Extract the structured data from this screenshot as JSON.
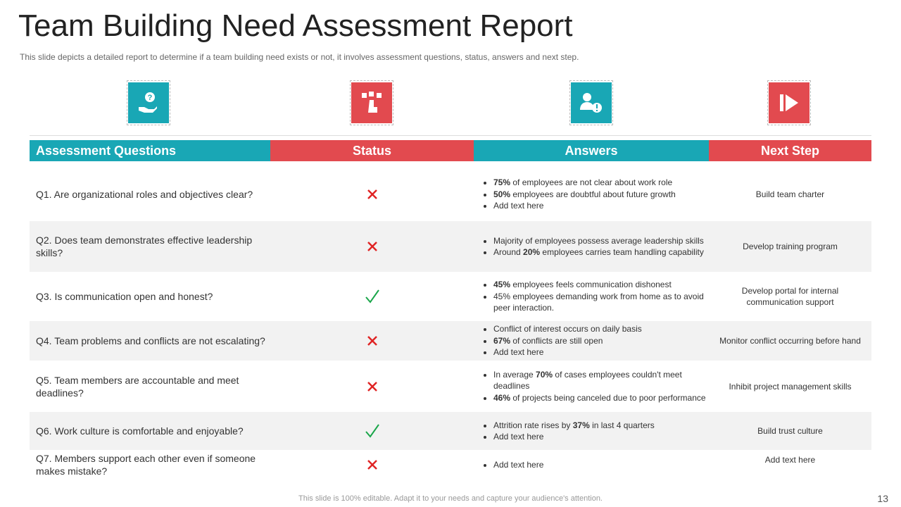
{
  "header": {
    "title": "Team Building Need Assessment Report",
    "subtitle": "This slide depicts a detailed report to determine  if a team building need exists or not, it involves  assessment questions, status, answers and next step."
  },
  "table": {
    "columns": [
      "Assessment Questions",
      "Status",
      "Answers",
      "Next Step"
    ],
    "rows": [
      {
        "question": "Q1. Are organizational roles and objectives clear?",
        "answers": [
          [
            {
              "bold": "75%"
            },
            " of employees are not clear about work role"
          ],
          [
            {
              "bold": "50%"
            },
            " employees are doubtful about future growth"
          ],
          [
            "Add text here"
          ]
        ],
        "next_step": "Build team charter"
      },
      {
        "question": "Q2. Does team demonstrates effective leadership skills?",
        "answers": [
          [
            "Majority of employees possess average leadership skills"
          ],
          [
            "Around ",
            {
              "bold": "20%"
            },
            " employees carries team handling capability"
          ]
        ],
        "next_step": "Develop  training program"
      },
      {
        "question": "Q3. Is communication open and honest?",
        "answers": [
          [
            {
              "bold": "45%"
            },
            " employees feels communication dishonest"
          ],
          [
            "45% employees demanding work from home as to avoid  peer interaction."
          ]
        ],
        "next_step": "Develop  portal for internal communication support"
      },
      {
        "question": "Q4. Team problems and conflicts are not escalating?",
        "answers": [
          [
            "Conflict of interest  occurs on daily basis"
          ],
          [
            {
              "bold": "67%"
            },
            " of conflicts are still open"
          ],
          [
            "Add text here"
          ]
        ],
        "next_step": "Monitor conflict occurring before hand"
      },
      {
        "question": "Q5. Team members are accountable and meet deadlines?",
        "answers": [
          [
            "In average ",
            {
              "bold": "70%"
            },
            " of cases employees couldn't meet deadlines"
          ],
          [
            {
              "bold": "46%"
            },
            " of projects being canceled due to poor performance"
          ]
        ],
        "next_step": "Inhibit project management  skills"
      },
      {
        "question": "Q6. Work culture is comfortable and enjoyable?",
        "answers": [
          [
            "Attrition rate rises by ",
            {
              "bold": "37%"
            },
            " in last 4 quarters"
          ],
          [
            "Add text here"
          ]
        ],
        "next_step": "Build trust culture"
      },
      {
        "question": "Q7. Members support each other even if someone makes mistake?",
        "answers": [
          [
            "Add text here"
          ]
        ],
        "next_step": "Add text here"
      }
    ]
  },
  "footer": {
    "note": "This slide is 100% editable. Adapt it to your needs and capture your audience's attention.",
    "page_number": "13"
  }
}
